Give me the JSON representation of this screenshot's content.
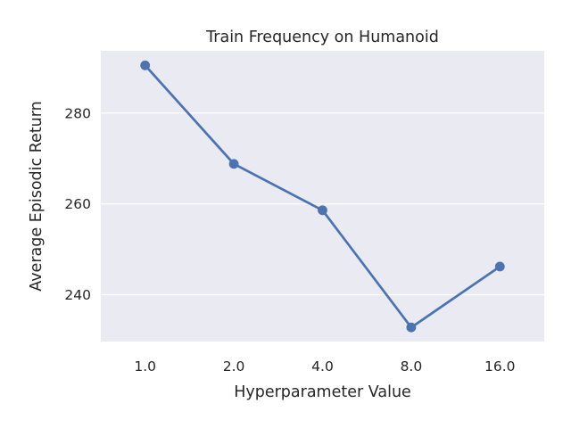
{
  "chart_data": {
    "type": "line",
    "title": "Train Frequency on Humanoid",
    "xlabel": "Hyperparameter Value",
    "ylabel": "Average Episodic Return",
    "categories": [
      "1.0",
      "2.0",
      "4.0",
      "8.0",
      "16.0"
    ],
    "series": [
      {
        "values": [
          290.5,
          268.8,
          258.6,
          232.8,
          246.2
        ]
      }
    ],
    "ylim": [
      229.7,
      293.7
    ],
    "yticks": [
      240,
      260,
      280
    ],
    "grid": true,
    "colors": {
      "background": "#eaeaf2",
      "grid": "#ffffff",
      "line": "#4c72b0"
    }
  }
}
